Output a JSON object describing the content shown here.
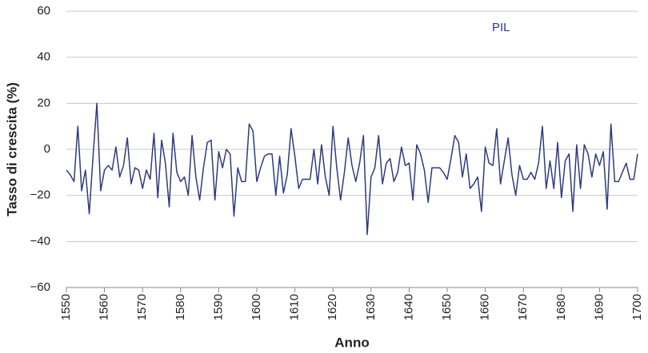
{
  "chart_data": {
    "type": "line",
    "xlabel": "Anno",
    "ylabel": "Tasso di crescita (%)",
    "x": [
      1550,
      1551,
      1552,
      1553,
      1554,
      1555,
      1556,
      1557,
      1558,
      1559,
      1560,
      1561,
      1562,
      1563,
      1564,
      1565,
      1566,
      1567,
      1568,
      1569,
      1570,
      1571,
      1572,
      1573,
      1574,
      1575,
      1576,
      1577,
      1578,
      1579,
      1580,
      1581,
      1582,
      1583,
      1584,
      1585,
      1586,
      1587,
      1588,
      1589,
      1590,
      1591,
      1592,
      1593,
      1594,
      1595,
      1596,
      1597,
      1598,
      1599,
      1600,
      1601,
      1602,
      1603,
      1604,
      1605,
      1606,
      1607,
      1608,
      1609,
      1610,
      1611,
      1612,
      1613,
      1614,
      1615,
      1616,
      1617,
      1618,
      1619,
      1620,
      1621,
      1622,
      1623,
      1624,
      1625,
      1626,
      1627,
      1628,
      1629,
      1630,
      1631,
      1632,
      1633,
      1634,
      1635,
      1636,
      1637,
      1638,
      1639,
      1640,
      1641,
      1642,
      1643,
      1644,
      1645,
      1646,
      1647,
      1648,
      1649,
      1650,
      1651,
      1652,
      1653,
      1654,
      1655,
      1656,
      1657,
      1658,
      1659,
      1660,
      1661,
      1662,
      1663,
      1664,
      1665,
      1666,
      1667,
      1668,
      1669,
      1670,
      1671,
      1672,
      1673,
      1674,
      1675,
      1676,
      1677,
      1678,
      1679,
      1680,
      1681,
      1682,
      1683,
      1684,
      1685,
      1686,
      1687,
      1688,
      1689,
      1690,
      1691,
      1692,
      1693,
      1694,
      1695,
      1696,
      1697,
      1698,
      1699,
      1700
    ],
    "series": [
      {
        "name": "PIL",
        "color": "#2e3b7e",
        "values": [
          -9,
          -11,
          -14,
          10,
          -18,
          -9,
          -28,
          -3,
          20,
          -18,
          -9,
          -7,
          -9,
          1,
          -12,
          -7,
          5,
          -15,
          -8,
          -9,
          -17,
          -9,
          -13,
          7,
          -21,
          4,
          -6,
          -25,
          7,
          -10,
          -14,
          -12,
          -20,
          6,
          -12,
          -22,
          -8,
          3,
          4,
          -22,
          -1,
          -8,
          0,
          -2,
          -29,
          -8,
          -14,
          -14,
          11,
          8,
          -14,
          -8,
          -3,
          -2,
          -2,
          -20,
          -3,
          -19,
          -11,
          9,
          -3,
          -17,
          -13,
          -13,
          -13,
          0,
          -15,
          2,
          -12,
          -20,
          10,
          -8,
          -22,
          -10,
          5,
          -7,
          -14,
          -6,
          6,
          -37,
          -12,
          -8,
          6,
          -15,
          -6,
          -4,
          -14,
          -10,
          1,
          -7,
          -6,
          -22,
          2,
          -2,
          -9,
          -23,
          -8,
          -8,
          -8,
          -10,
          -13,
          -4,
          6,
          3,
          -12,
          -2,
          -17,
          -15,
          -12,
          -27,
          1,
          -6,
          -7,
          9,
          -15,
          -5,
          5,
          -11,
          -20,
          -7,
          -13,
          -13,
          -10,
          -13,
          -6,
          10,
          -17,
          -5,
          -17,
          3,
          -21,
          -5,
          -2,
          -27,
          2,
          -17,
          2,
          -2,
          -12,
          -2,
          -7,
          -1,
          -26,
          11,
          -14,
          -14,
          -10,
          -6,
          -13,
          -13,
          -2
        ]
      }
    ],
    "xlim": [
      1550,
      1700
    ],
    "xticks": [
      1550,
      1560,
      1570,
      1580,
      1590,
      1600,
      1610,
      1620,
      1630,
      1640,
      1650,
      1660,
      1670,
      1680,
      1690,
      1700
    ],
    "ylim": [
      -60,
      60
    ],
    "yticks": [
      {
        "value": -60,
        "label": "−60"
      },
      {
        "value": -40,
        "label": "−40"
      },
      {
        "value": -20,
        "label": "−20"
      },
      0,
      20,
      40,
      60
    ],
    "grid": true
  }
}
